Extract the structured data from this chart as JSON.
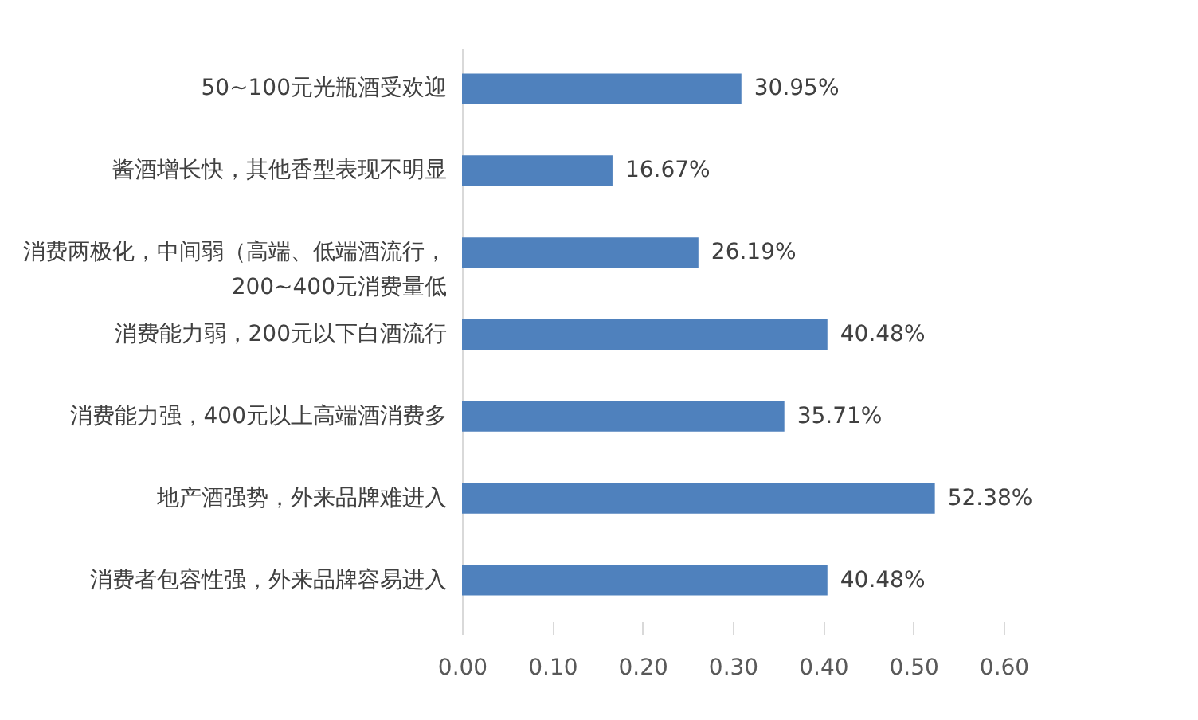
{
  "chart_data": {
    "type": "bar",
    "orientation": "horizontal",
    "categories": [
      "50~100元光瓶酒受欢迎",
      "酱酒增长快，其他香型表现不明显",
      "消费两极化，中间弱（高端、低端酒流行，200~400元消费量低",
      "消费能力弱，200元以下白酒流行",
      "消费能力强，400元以上高端酒消费多",
      "地产酒强势，外来品牌难进入",
      "消费者包容性强，外来品牌容易进入"
    ],
    "values": [
      0.3095,
      0.1667,
      0.2619,
      0.4048,
      0.3571,
      0.5238,
      0.4048
    ],
    "value_labels": [
      "30.95%",
      "16.67%",
      "26.19%",
      "40.48%",
      "35.71%",
      "52.38%",
      "40.48%"
    ],
    "color": "#4f81bd",
    "xlim": [
      0,
      0.6
    ],
    "xticks": [
      {
        "value": 0,
        "label": "0.00"
      },
      {
        "value": 0.1,
        "label": "0.10"
      },
      {
        "value": 0.2,
        "label": "0.20"
      },
      {
        "value": 0.3,
        "label": "0.30"
      },
      {
        "value": 0.4,
        "label": "0.40"
      },
      {
        "value": 0.5,
        "label": "0.50"
      },
      {
        "value": 0.6,
        "label": "0.60"
      }
    ],
    "grid": false
  }
}
